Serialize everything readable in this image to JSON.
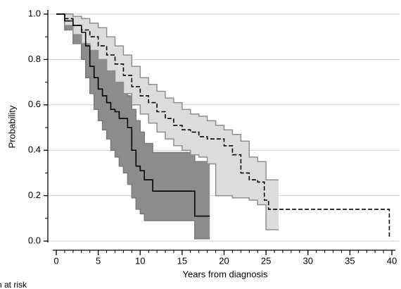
{
  "chart_data": {
    "type": "step",
    "x_label": "Years from diagnosis",
    "y_label": "Probability",
    "footnote": "n at risk",
    "xlim": [
      0,
      40
    ],
    "xticks": [
      0,
      5,
      10,
      15,
      20,
      25,
      30,
      35,
      40
    ],
    "ylim": [
      0,
      1
    ],
    "yticks": [
      {
        "value": 0,
        "label": "0.0"
      },
      {
        "value": 0.2,
        "label": "0.2"
      },
      {
        "value": 0.4,
        "label": "0.4"
      },
      {
        "value": 0.6,
        "label": "0.6"
      },
      {
        "value": 0.8,
        "label": "0.8"
      },
      {
        "value": 1,
        "label": "1.0"
      }
    ],
    "grid": true,
    "series": [
      {
        "line_style": "solid",
        "color": "#000000",
        "band_color": "#8c8c8c",
        "band_edge": "#7a7a7a",
        "x": [
          0,
          1,
          2,
          3,
          3.5,
          4,
          4.5,
          5,
          5.5,
          6,
          6.5,
          7,
          7.5,
          8,
          8.5,
          9,
          9.5,
          10,
          10.5,
          11.5,
          16.5,
          18.3
        ],
        "values": [
          1,
          0.97,
          0.95,
          0.92,
          0.86,
          0.77,
          0.72,
          0.67,
          0.64,
          0.61,
          0.58,
          0.57,
          0.54,
          0.54,
          0.5,
          0.4,
          0.33,
          0.31,
          0.27,
          0.22,
          0.11,
          0.11
        ],
        "band_x": [
          0,
          1,
          2,
          3,
          3.5,
          4,
          4.5,
          5,
          5.5,
          6,
          6.5,
          7,
          7.5,
          8,
          8.5,
          9,
          9.5,
          10,
          10.5,
          11.5,
          16.5,
          18.3
        ],
        "lower": [
          1,
          0.93,
          0.87,
          0.8,
          0.72,
          0.65,
          0.58,
          0.53,
          0.49,
          0.45,
          0.4,
          0.37,
          0.33,
          0.3,
          0.25,
          0.19,
          0.14,
          0.12,
          0.09,
          0.09,
          0.01,
          0.01
        ],
        "upper": [
          1,
          1,
          0.99,
          0.98,
          0.95,
          0.92,
          0.88,
          0.84,
          0.82,
          0.79,
          0.76,
          0.73,
          0.71,
          0.68,
          0.64,
          0.58,
          0.53,
          0.48,
          0.43,
          0.39,
          0.35,
          0.35
        ]
      },
      {
        "line_style": "dashed",
        "color": "#000000",
        "band_color": "#dcdcdc",
        "band_edge": "#8f8f8f",
        "x": [
          0,
          1,
          2,
          3,
          4,
          5,
          6,
          7,
          8,
          9,
          10,
          11,
          12,
          13,
          14,
          15,
          16,
          17,
          18,
          19,
          20,
          21,
          22,
          23,
          24,
          24.8,
          25.3,
          39.7
        ],
        "values": [
          1,
          0.98,
          0.95,
          0.93,
          0.9,
          0.86,
          0.82,
          0.78,
          0.73,
          0.68,
          0.64,
          0.61,
          0.57,
          0.54,
          0.51,
          0.49,
          0.48,
          0.46,
          0.45,
          0.45,
          0.42,
          0.38,
          0.3,
          0.27,
          0.26,
          0.18,
          0.14,
          0.01
        ],
        "band_x": [
          0,
          1,
          2,
          3,
          4,
          5,
          6,
          7,
          8,
          9,
          10,
          11,
          12,
          13,
          14,
          15,
          16,
          17,
          18,
          19,
          20,
          21,
          22,
          23,
          24,
          25,
          26.5
        ],
        "lower": [
          1,
          0.95,
          0.91,
          0.87,
          0.84,
          0.8,
          0.75,
          0.7,
          0.65,
          0.6,
          0.56,
          0.52,
          0.48,
          0.45,
          0.42,
          0.4,
          0.38,
          0.37,
          0.34,
          0.2,
          0.2,
          0.19,
          0.19,
          0.18,
          0.16,
          0.05,
          0.05
        ],
        "upper": [
          1,
          1,
          0.99,
          0.98,
          0.96,
          0.94,
          0.9,
          0.86,
          0.82,
          0.77,
          0.72,
          0.69,
          0.66,
          0.63,
          0.61,
          0.58,
          0.56,
          0.55,
          0.53,
          0.51,
          0.49,
          0.47,
          0.44,
          0.37,
          0.35,
          0.27,
          0.27
        ]
      }
    ]
  }
}
